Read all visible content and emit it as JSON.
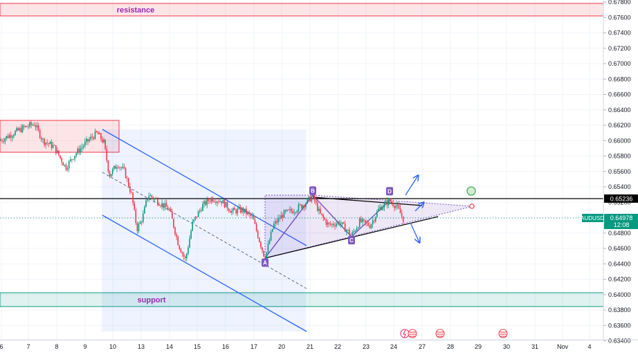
{
  "chart_data": {
    "type": "candlestick",
    "symbol": "AUDUSD",
    "last_price": "0.64978",
    "countdown": "12:08",
    "hline_price": "0.65236",
    "y_ticks": [
      "0.67800",
      "0.67600",
      "0.67400",
      "0.67200",
      "0.67000",
      "0.66800",
      "0.66600",
      "0.66400",
      "0.66200",
      "0.66000",
      "0.65800",
      "0.65600",
      "0.65400",
      "0.65200",
      "0.65000",
      "0.64800",
      "0.64600",
      "0.64400",
      "0.64200",
      "0.64000",
      "0.63800",
      "0.63600",
      "0.63400"
    ],
    "ylim": [
      0.6335,
      0.6782
    ],
    "x_ticks": [
      "6",
      "7",
      "8",
      "9",
      "10",
      "13",
      "14",
      "15",
      "16",
      "17",
      "20",
      "21",
      "22",
      "23",
      "24",
      "27",
      "28",
      "29",
      "30",
      "31",
      "Nov",
      "4"
    ],
    "zones": {
      "resistance": {
        "label": "resistance",
        "from": 0.6762,
        "to": 0.6779,
        "color": "#f23645"
      },
      "supply": {
        "from": 0.6583,
        "to": 0.6626,
        "color": "#f23645"
      },
      "support": {
        "label": "support",
        "from": 0.6382,
        "to": 0.64,
        "color": "#089981"
      }
    },
    "pattern_points": [
      {
        "label": "A",
        "price": 0.6447
      },
      {
        "label": "B",
        "price": 0.6528
      },
      {
        "label": "C",
        "price": 0.6477
      },
      {
        "label": "D",
        "price": 0.6528
      }
    ],
    "colors": {
      "up": "#089981",
      "down": "#f23645",
      "channel": "#2962ff",
      "pattern": "#7e57c2",
      "price_tag": "#089981",
      "hline": "#000000"
    }
  }
}
